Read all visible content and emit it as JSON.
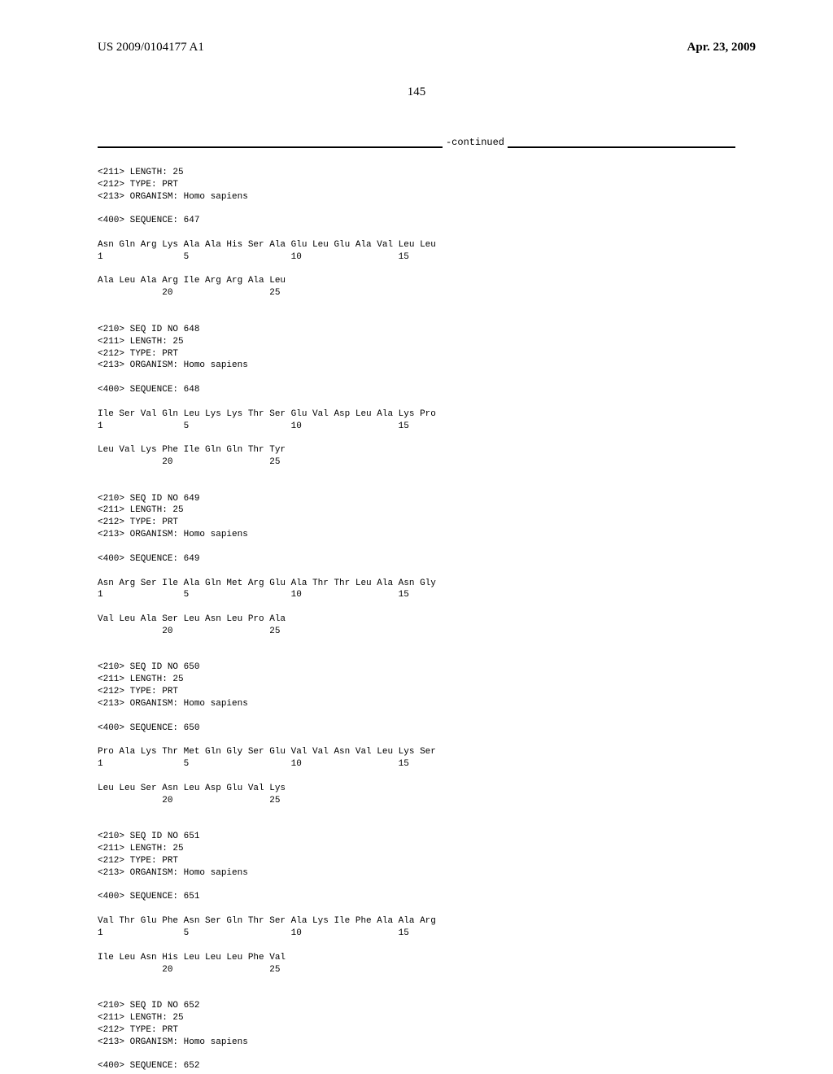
{
  "header": {
    "pub_number": "US 2009/0104177 A1",
    "pub_date": "Apr. 23, 2009"
  },
  "page_number": "145",
  "continued_label": "-continued",
  "sequences": {
    "block_647": {
      "meta": "<211> LENGTH: 25\n<212> TYPE: PRT\n<213> ORGANISM: Homo sapiens",
      "seq_header": "<400> SEQUENCE: 647",
      "line1": "Asn Gln Arg Lys Ala Ala His Ser Ala Glu Leu Glu Ala Val Leu Leu",
      "nums1": "1               5                   10                  15",
      "line2": "Ala Leu Ala Arg Ile Arg Arg Ala Leu",
      "nums2": "            20                  25"
    },
    "block_648": {
      "meta": "<210> SEQ ID NO 648\n<211> LENGTH: 25\n<212> TYPE: PRT\n<213> ORGANISM: Homo sapiens",
      "seq_header": "<400> SEQUENCE: 648",
      "line1": "Ile Ser Val Gln Leu Lys Lys Thr Ser Glu Val Asp Leu Ala Lys Pro",
      "nums1": "1               5                   10                  15",
      "line2": "Leu Val Lys Phe Ile Gln Gln Thr Tyr",
      "nums2": "            20                  25"
    },
    "block_649": {
      "meta": "<210> SEQ ID NO 649\n<211> LENGTH: 25\n<212> TYPE: PRT\n<213> ORGANISM: Homo sapiens",
      "seq_header": "<400> SEQUENCE: 649",
      "line1": "Asn Arg Ser Ile Ala Gln Met Arg Glu Ala Thr Thr Leu Ala Asn Gly",
      "nums1": "1               5                   10                  15",
      "line2": "Val Leu Ala Ser Leu Asn Leu Pro Ala",
      "nums2": "            20                  25"
    },
    "block_650": {
      "meta": "<210> SEQ ID NO 650\n<211> LENGTH: 25\n<212> TYPE: PRT\n<213> ORGANISM: Homo sapiens",
      "seq_header": "<400> SEQUENCE: 650",
      "line1": "Pro Ala Lys Thr Met Gln Gly Ser Glu Val Val Asn Val Leu Lys Ser",
      "nums1": "1               5                   10                  15",
      "line2": "Leu Leu Ser Asn Leu Asp Glu Val Lys",
      "nums2": "            20                  25"
    },
    "block_651": {
      "meta": "<210> SEQ ID NO 651\n<211> LENGTH: 25\n<212> TYPE: PRT\n<213> ORGANISM: Homo sapiens",
      "seq_header": "<400> SEQUENCE: 651",
      "line1": "Val Thr Glu Phe Asn Ser Gln Thr Ser Ala Lys Ile Phe Ala Ala Arg",
      "nums1": "1               5                   10                  15",
      "line2": "Ile Leu Asn His Leu Leu Leu Phe Val",
      "nums2": "            20                  25"
    },
    "block_652": {
      "meta": "<210> SEQ ID NO 652\n<211> LENGTH: 25\n<212> TYPE: PRT\n<213> ORGANISM: Homo sapiens",
      "seq_header": "<400> SEQUENCE: 652"
    }
  }
}
